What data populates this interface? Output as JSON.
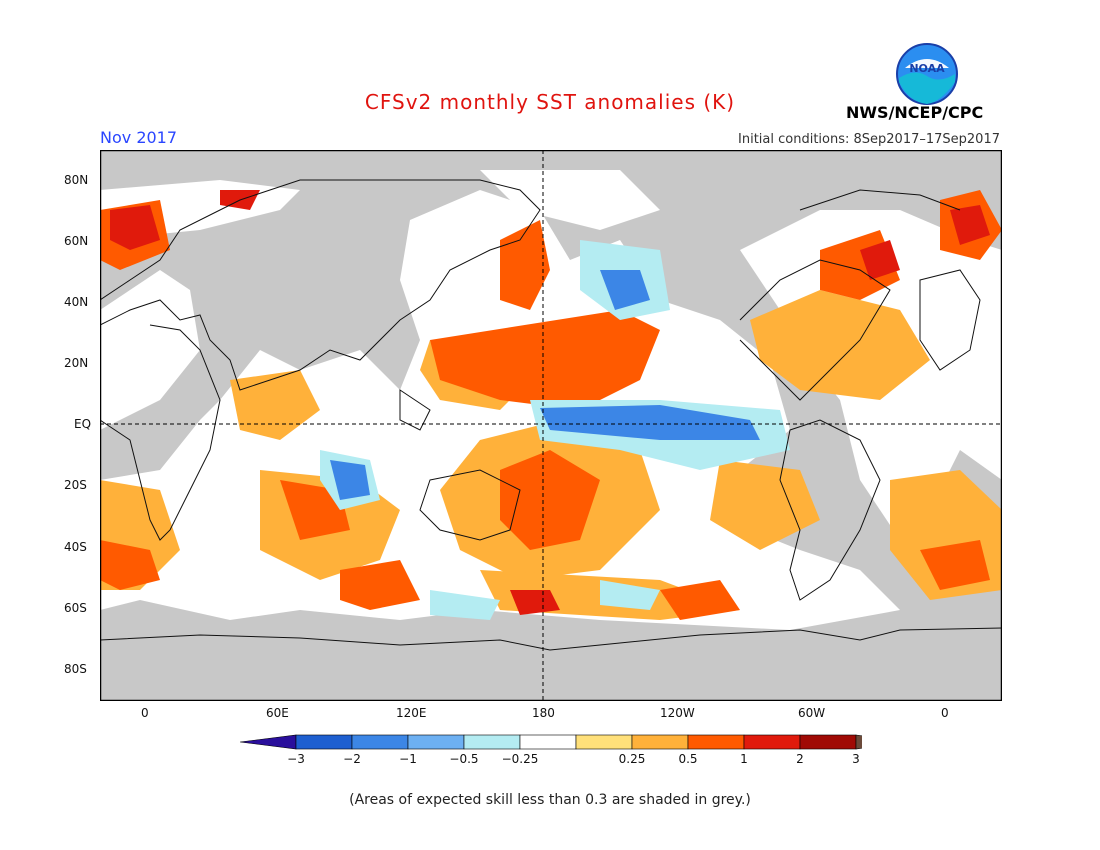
{
  "header": {
    "title": "CFSv2 monthly SST anomalies (K)",
    "month": "Nov 2017",
    "initial_conditions": "Initial conditions: 8Sep2017–17Sep2017",
    "agency": "NWS/NCEP/CPC",
    "logo_text": "NOAA"
  },
  "map": {
    "lat_labels": [
      "80N",
      "60N",
      "40N",
      "20N",
      "EQ",
      "20S",
      "40S",
      "60S",
      "80S"
    ],
    "lon_labels": [
      "0",
      "60E",
      "120E",
      "180",
      "120W",
      "60W",
      "0"
    ],
    "colors": {
      "land": "#c8c8c8",
      "skill_grey": "#c8c8c8",
      "ocean_neutral": "#ffffff"
    }
  },
  "colorbar": {
    "labels": [
      "-3",
      "-2",
      "-1",
      "-0.5",
      "-0.25",
      "0.25",
      "0.5",
      "1",
      "2",
      "3"
    ],
    "colors": [
      "#2a0f9c",
      "#1e5fd0",
      "#3c86e6",
      "#6db0f2",
      "#b4ecf2",
      "#ffffff",
      "#ffe07a",
      "#ffb13a",
      "#ff5a00",
      "#e01a0c",
      "#a00a05",
      "#6b4a3a"
    ]
  },
  "footer": {
    "note": "(Areas of expected skill less than 0.3 are shaded in grey.)"
  }
}
